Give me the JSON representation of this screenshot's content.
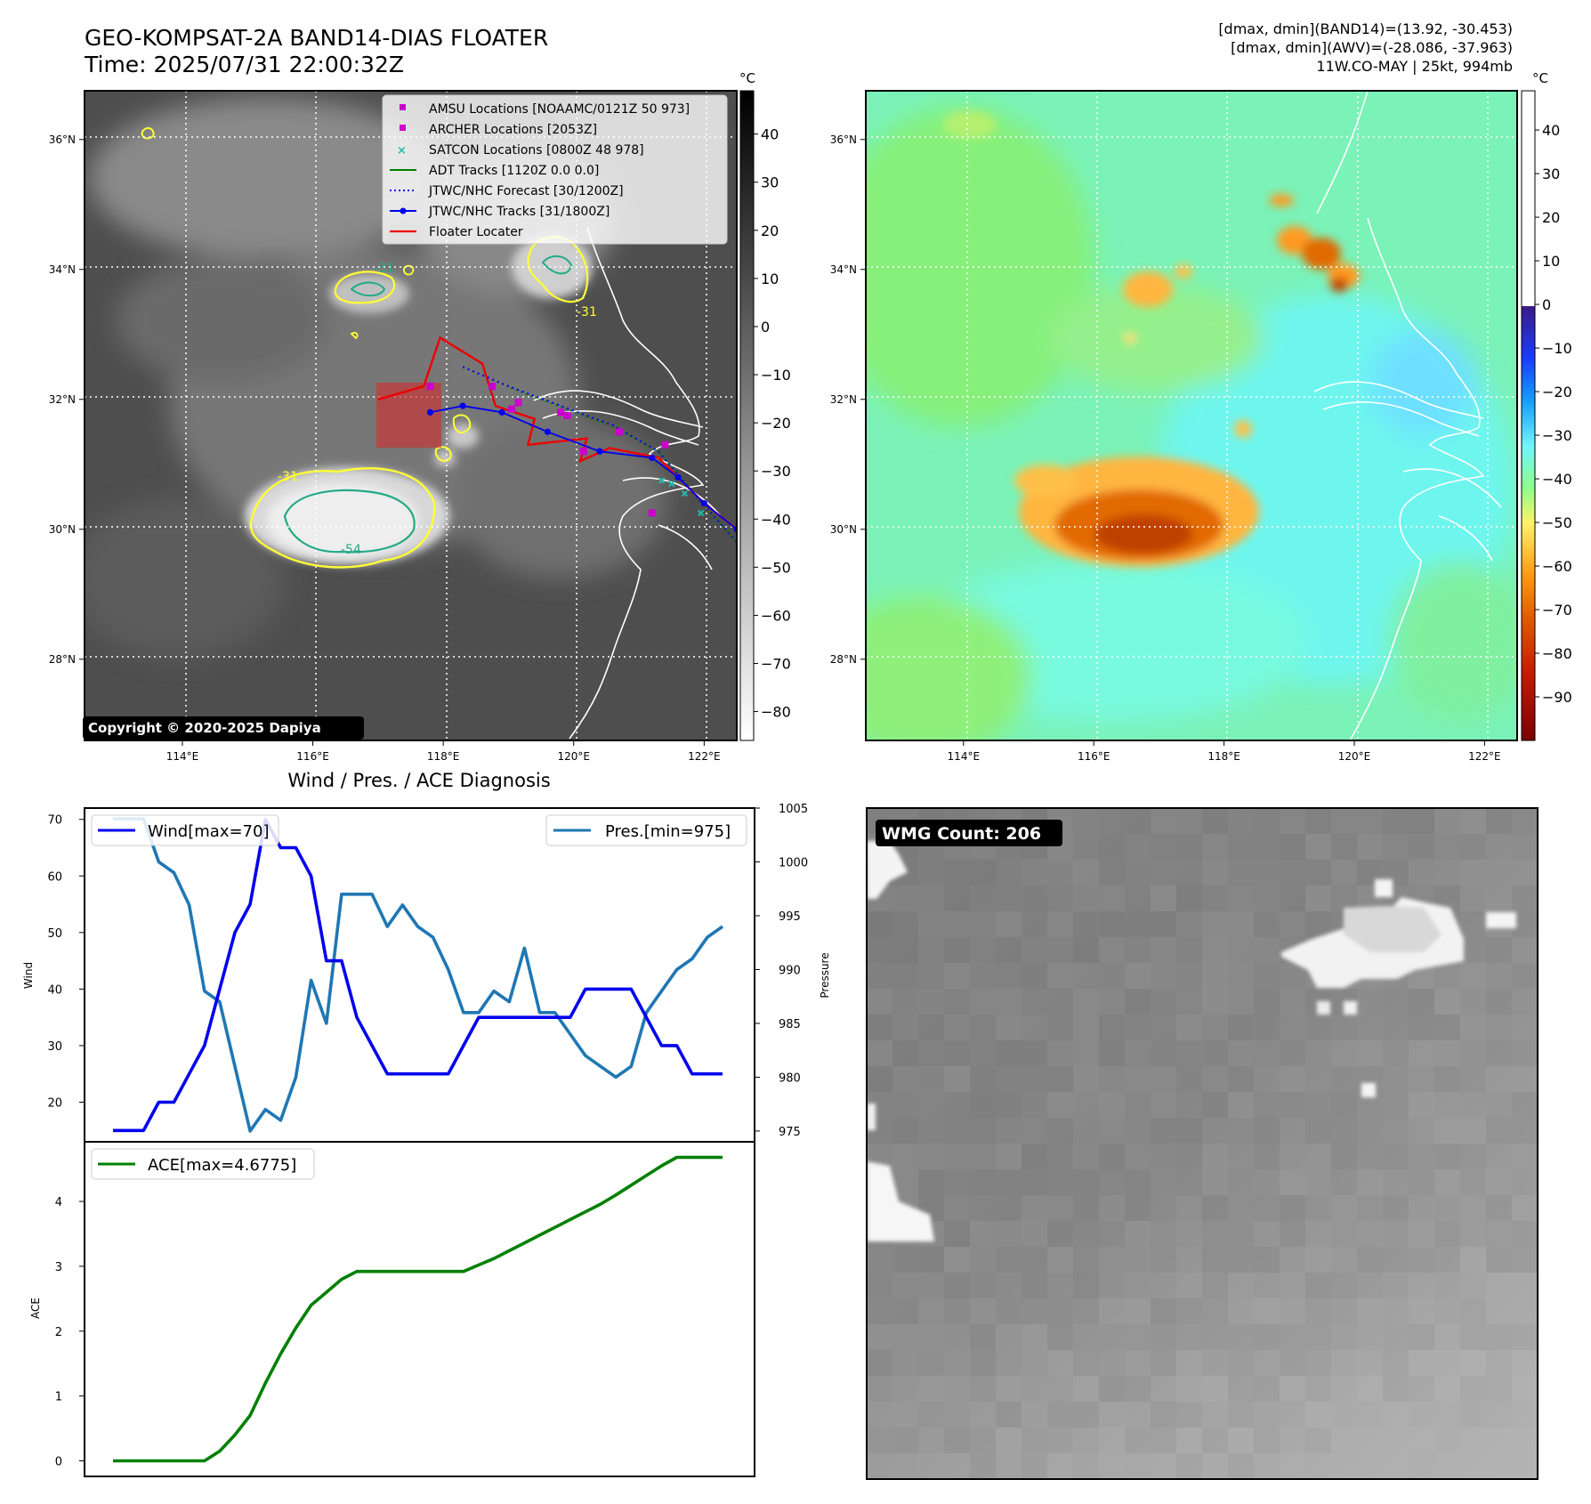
{
  "header": {
    "title_line1": "GEO-KOMPSAT-2A BAND14-DIAS FLOATER",
    "title_line2": "Time: 2025/07/31 22:00:32Z",
    "info_line1": "[dmax, dmin](BAND14)=(13.92, -30.453)",
    "info_line2": "[dmax, dmin](AWV)=(-28.086, -37.963)",
    "info_line3": "11W.CO-MAY | 25kt, 994mb",
    "copyright": "Copyright © 2020-2025 Dapiya"
  },
  "map_axes": {
    "lon_ticks": [
      "114°E",
      "116°E",
      "118°E",
      "120°E",
      "122°E"
    ],
    "lon_values": [
      114,
      116,
      118,
      120,
      122
    ],
    "lat_ticks": [
      "36°N",
      "34°N",
      "32°N",
      "30°N",
      "28°N"
    ],
    "lat_values": [
      36,
      34,
      32,
      30,
      28
    ],
    "lon_range": [
      112.5,
      122.5
    ],
    "lat_range": [
      26.75,
      36.75
    ]
  },
  "colorbar_left": {
    "unit": "°C",
    "ticks": [
      "40",
      "30",
      "20",
      "10",
      "0",
      "−10",
      "−20",
      "−30",
      "−40",
      "−50",
      "−60",
      "−70",
      "−80"
    ],
    "values": [
      40,
      30,
      20,
      10,
      0,
      -10,
      -20,
      -30,
      -40,
      -50,
      -60,
      -70,
      -80
    ],
    "range": [
      49,
      -86
    ]
  },
  "colorbar_right": {
    "unit": "°C",
    "ticks": [
      "40",
      "30",
      "20",
      "10",
      "0",
      "−10",
      "−20",
      "−30",
      "−40",
      "−50",
      "−60",
      "−70",
      "−80",
      "−90"
    ],
    "values": [
      40,
      30,
      20,
      10,
      0,
      -10,
      -20,
      -30,
      -40,
      -50,
      -60,
      -70,
      -80,
      -90
    ],
    "range": [
      49,
      -100
    ]
  },
  "legend": {
    "amsu": "AMSU Locations [NOAAMC/0121Z 50 973]",
    "archer": "ARCHER Locations [2053Z]",
    "satcon": "SATCON Locations [0800Z 48 978]",
    "adt": "ADT Tracks [1120Z 0.0 0.0]",
    "forecast": "JTWC/NHC Forecast [30/1200Z]",
    "tracks": "JTWC/NHC Tracks [31/1800Z]",
    "floater": "Floater Locater"
  },
  "contour_labels": [
    "-31",
    "-31",
    "-31",
    "-54"
  ],
  "track_data": {
    "jtwc_tracks": [
      [
        117.8,
        31.8
      ],
      [
        118.3,
        31.9
      ],
      [
        118.9,
        31.8
      ],
      [
        119.6,
        31.5
      ],
      [
        120.4,
        31.2
      ],
      [
        121.2,
        31.1
      ],
      [
        121.6,
        30.8
      ],
      [
        122.0,
        30.4
      ],
      [
        122.5,
        30.0
      ]
    ],
    "forecast": [
      [
        118.3,
        32.5
      ],
      [
        119.0,
        32.2
      ],
      [
        119.8,
        31.9
      ],
      [
        120.6,
        31.6
      ],
      [
        121.3,
        31.2
      ],
      [
        121.8,
        30.6
      ],
      [
        122.5,
        29.8
      ]
    ],
    "amsu": [
      [
        117.8,
        32.2
      ],
      [
        118.75,
        32.2
      ],
      [
        119.05,
        31.85
      ],
      [
        119.15,
        31.95
      ],
      [
        119.8,
        31.8
      ],
      [
        119.9,
        31.75
      ],
      [
        120.15,
        31.2
      ],
      [
        120.7,
        31.5
      ],
      [
        121.2,
        30.25
      ],
      [
        121.4,
        31.3
      ]
    ],
    "satcon": [
      [
        121.35,
        30.75
      ],
      [
        121.5,
        30.7
      ],
      [
        121.7,
        30.55
      ],
      [
        121.95,
        30.25
      ]
    ],
    "floater": [
      [
        117.0,
        32.0
      ],
      [
        117.7,
        32.2
      ],
      [
        117.95,
        32.95
      ],
      [
        118.6,
        32.55
      ],
      [
        118.8,
        31.9
      ],
      [
        119.4,
        31.7
      ],
      [
        119.3,
        31.3
      ],
      [
        120.2,
        31.4
      ],
      [
        120.1,
        31.05
      ],
      [
        120.55,
        31.25
      ],
      [
        121.3,
        31.1
      ],
      [
        121.55,
        30.85
      ],
      [
        122.0,
        30.4
      ],
      [
        122.5,
        30.0
      ]
    ]
  },
  "diagnosis": {
    "title": "Wind / Pres. / ACE Diagnosis",
    "wind_ylabel": "Wind",
    "pres_ylabel": "Pressure",
    "ace_ylabel": "ACE",
    "wind_legend": "Wind[max=70]",
    "pres_legend": "Pres.[min=975]",
    "ace_legend": "ACE[max=4.6775]"
  },
  "chart_data": [
    {
      "type": "line",
      "name": "Wind",
      "x": [
        0,
        1,
        2,
        3,
        4,
        5,
        6,
        7,
        8,
        9,
        10,
        11,
        12,
        13,
        14,
        15,
        16,
        17,
        18,
        19,
        20,
        21,
        22,
        23,
        24,
        25,
        26,
        27,
        28,
        29,
        30,
        31,
        32,
        33,
        34,
        35,
        36,
        37,
        38,
        39,
        40
      ],
      "values": [
        15,
        15,
        15,
        20,
        20,
        25,
        30,
        40,
        50,
        55,
        70,
        65,
        65,
        60,
        45,
        45,
        35,
        30,
        25,
        25,
        25,
        25,
        25,
        30,
        35,
        35,
        35,
        35,
        35,
        35,
        35,
        40,
        40,
        40,
        40,
        35,
        30,
        30,
        25,
        25,
        25
      ],
      "ylim": [
        13,
        72
      ],
      "yticks": [
        20,
        30,
        40,
        50,
        60,
        70
      ],
      "color": "#0000ee"
    },
    {
      "type": "line",
      "name": "Pres.",
      "x": [
        0,
        1,
        2,
        3,
        4,
        5,
        6,
        7,
        8,
        9,
        10,
        11,
        12,
        13,
        14,
        15,
        16,
        17,
        18,
        19,
        20,
        21,
        22,
        23,
        24,
        25,
        26,
        27,
        28,
        29,
        30,
        31,
        32,
        33,
        34,
        35,
        36,
        37,
        38,
        39,
        40
      ],
      "values": [
        1004,
        1004,
        1004,
        1000,
        999,
        996,
        988,
        987,
        981,
        975,
        977,
        976,
        980,
        989,
        985,
        997,
        997,
        997,
        994,
        996,
        994,
        993,
        990,
        986,
        986,
        988,
        987,
        992,
        986,
        986,
        984,
        982,
        981,
        980,
        981,
        986,
        988,
        990,
        991,
        993,
        994
      ],
      "ylim": [
        974,
        1005
      ],
      "yticks": [
        975,
        980,
        985,
        990,
        995,
        1000,
        1005
      ],
      "color": "#1f77b4"
    },
    {
      "type": "line",
      "name": "ACE",
      "x": [
        0,
        1,
        2,
        3,
        4,
        5,
        6,
        7,
        8,
        9,
        10,
        11,
        12,
        13,
        14,
        15,
        16,
        17,
        18,
        19,
        20,
        21,
        22,
        23,
        24,
        25,
        26,
        27,
        28,
        29,
        30,
        31,
        32,
        33,
        34,
        35,
        36,
        37,
        38,
        39,
        40
      ],
      "values": [
        0,
        0,
        0,
        0,
        0,
        0,
        0,
        0.15,
        0.4,
        0.7,
        1.2,
        1.65,
        2.05,
        2.4,
        2.6,
        2.8,
        2.92,
        2.92,
        2.92,
        2.92,
        2.92,
        2.92,
        2.92,
        2.92,
        3.02,
        3.12,
        3.24,
        3.36,
        3.48,
        3.6,
        3.72,
        3.84,
        3.96,
        4.1,
        4.25,
        4.4,
        4.55,
        4.68,
        4.68,
        4.68,
        4.68
      ],
      "ylim": [
        -0.24,
        4.92
      ],
      "yticks": [
        0,
        1,
        2,
        3,
        4
      ],
      "color": "#008000"
    }
  ],
  "wmg": {
    "label": "WMG Count: 206"
  }
}
